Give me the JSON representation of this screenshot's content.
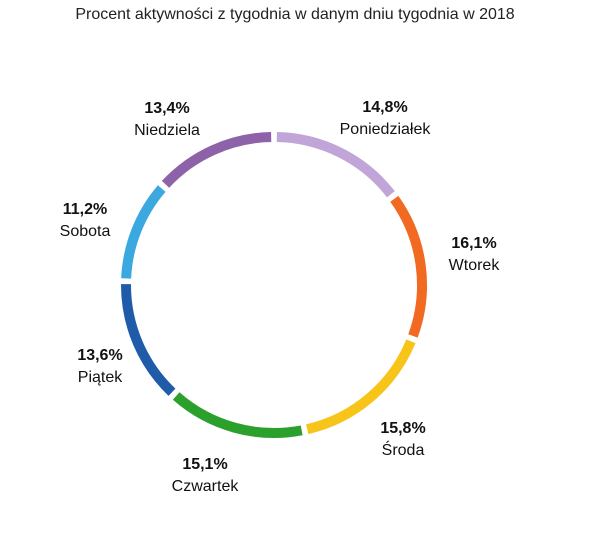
{
  "chart_data": {
    "type": "pie",
    "variant": "donut",
    "title": "Procent aktywności z tygodnia w danym dniu tygodnia w 2018",
    "categories": [
      "Poniedziałek",
      "Wtorek",
      "Środa",
      "Czwartek",
      "Piątek",
      "Sobota",
      "Niedziela"
    ],
    "values": [
      14.8,
      16.1,
      15.8,
      15.1,
      13.6,
      11.2,
      13.4
    ],
    "value_labels": [
      "14,8%",
      "16,1%",
      "15,8%",
      "15,1%",
      "13,6%",
      "11,2%",
      "13,4%"
    ],
    "colors": [
      "#c2a5d8",
      "#f26a21",
      "#f7c41a",
      "#2ca02c",
      "#1f5ba8",
      "#3ba9e0",
      "#8e62a8"
    ],
    "legend": "none"
  }
}
